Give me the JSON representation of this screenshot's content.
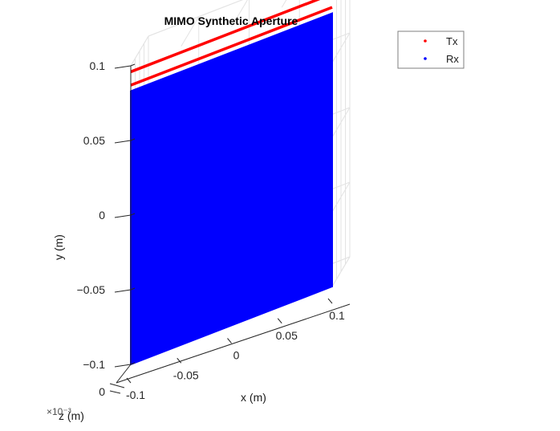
{
  "chart_data": {
    "type": "scatter3d",
    "title": "MIMO Synthetic Aperture",
    "xlabel": "x (m)",
    "ylabel": "y (m)",
    "zlabel": "z (m)",
    "z_exponent_label": "×10⁻³",
    "xlim": [
      -0.1,
      0.1
    ],
    "ylim": [
      -0.1,
      0.1
    ],
    "x_ticks": [
      -0.1,
      -0.05,
      0,
      0.05,
      0.1
    ],
    "x_tick_labels": [
      "-0.1",
      "-0.05",
      "0",
      "0.05",
      "0.1"
    ],
    "y_ticks": [
      -0.1,
      -0.05,
      0,
      0.05,
      0.1
    ],
    "y_tick_labels": [
      "−0.1",
      "−0.05",
      "0",
      "0.05",
      "0.1"
    ],
    "z_ticks": [
      0
    ],
    "z_tick_labels": [
      "0"
    ],
    "grid": true,
    "legend_position": "top-right",
    "series": [
      {
        "name": "Tx",
        "color": "#ff0000",
        "marker": "point",
        "lines": [
          {
            "y": 0.096,
            "x_range": [
              -0.1,
              0.1
            ]
          },
          {
            "y": 0.087,
            "x_range": [
              -0.1,
              0.1
            ]
          }
        ]
      },
      {
        "name": "Rx",
        "color": "#0000ff",
        "marker": "point",
        "region": {
          "x_range": [
            -0.1,
            0.1
          ],
          "y_range": [
            -0.1,
            0.083
          ]
        }
      }
    ]
  }
}
